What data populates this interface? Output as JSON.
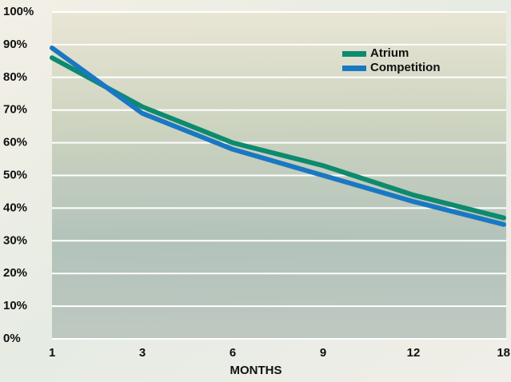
{
  "chart_data": {
    "type": "line",
    "x_label": "MONTHS",
    "categories": [
      "1",
      "3",
      "6",
      "9",
      "12",
      "18"
    ],
    "series": [
      {
        "name": "Atrium",
        "color": "#0e8a6e",
        "values": [
          86,
          71,
          60,
          53,
          44,
          37
        ]
      },
      {
        "name": "Competition",
        "color": "#1a78c2",
        "values": [
          89,
          69,
          58,
          50,
          42,
          35
        ]
      }
    ],
    "ylim": [
      0,
      100
    ],
    "yticks": [
      {
        "value": 0,
        "label": "0%"
      },
      {
        "value": 10,
        "label": "10%"
      },
      {
        "value": 20,
        "label": "20%"
      },
      {
        "value": 30,
        "label": "30%"
      },
      {
        "value": 40,
        "label": "40%"
      },
      {
        "value": 50,
        "label": "50%"
      },
      {
        "value": 60,
        "label": "60%"
      },
      {
        "value": 70,
        "label": "70%"
      },
      {
        "value": 80,
        "label": "80%"
      },
      {
        "value": 90,
        "label": "90%"
      },
      {
        "value": 100,
        "label": "100%"
      }
    ],
    "grid": true,
    "legend": "upper-right"
  }
}
